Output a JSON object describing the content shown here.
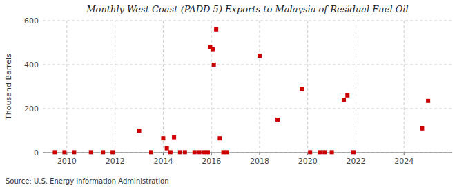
{
  "chart_data": {
    "type": "scatter",
    "title": "Monthly West Coast (PADD 5) Exports to Malaysia of Residual Fuel Oil",
    "y_label": "Thousand Barrels",
    "annotations": [
      "Source: U.S. Energy Information Administration"
    ],
    "color": "#cc0000",
    "marker": "square",
    "grid": true,
    "xlim": [
      2009.0,
      2026.0
    ],
    "ylim": [
      0,
      600
    ],
    "xticks": [
      2010,
      2012,
      2014,
      2016,
      2018,
      2020,
      2022,
      2024
    ],
    "yticks": [
      0,
      200,
      400,
      600
    ],
    "x": [
      2009.5,
      2009.9,
      2010.3,
      2011.0,
      2011.5,
      2011.9,
      2013.0,
      2013.5,
      2014.0,
      2014.15,
      2014.3,
      2014.45,
      2014.7,
      2014.9,
      2015.3,
      2015.5,
      2015.7,
      2015.85,
      2015.95,
      2016.05,
      2016.1,
      2016.2,
      2016.35,
      2016.5,
      2016.65,
      2018.0,
      2018.75,
      2019.75,
      2020.1,
      2020.5,
      2020.7,
      2021.0,
      2021.5,
      2021.65,
      2021.9,
      2024.75,
      2025.0
    ],
    "values": [
      2,
      2,
      2,
      2,
      2,
      2,
      100,
      2,
      65,
      20,
      2,
      70,
      2,
      2,
      2,
      2,
      2,
      2,
      480,
      470,
      400,
      560,
      65,
      2,
      2,
      440,
      150,
      290,
      2,
      2,
      2,
      2,
      240,
      260,
      2,
      110,
      235
    ]
  }
}
